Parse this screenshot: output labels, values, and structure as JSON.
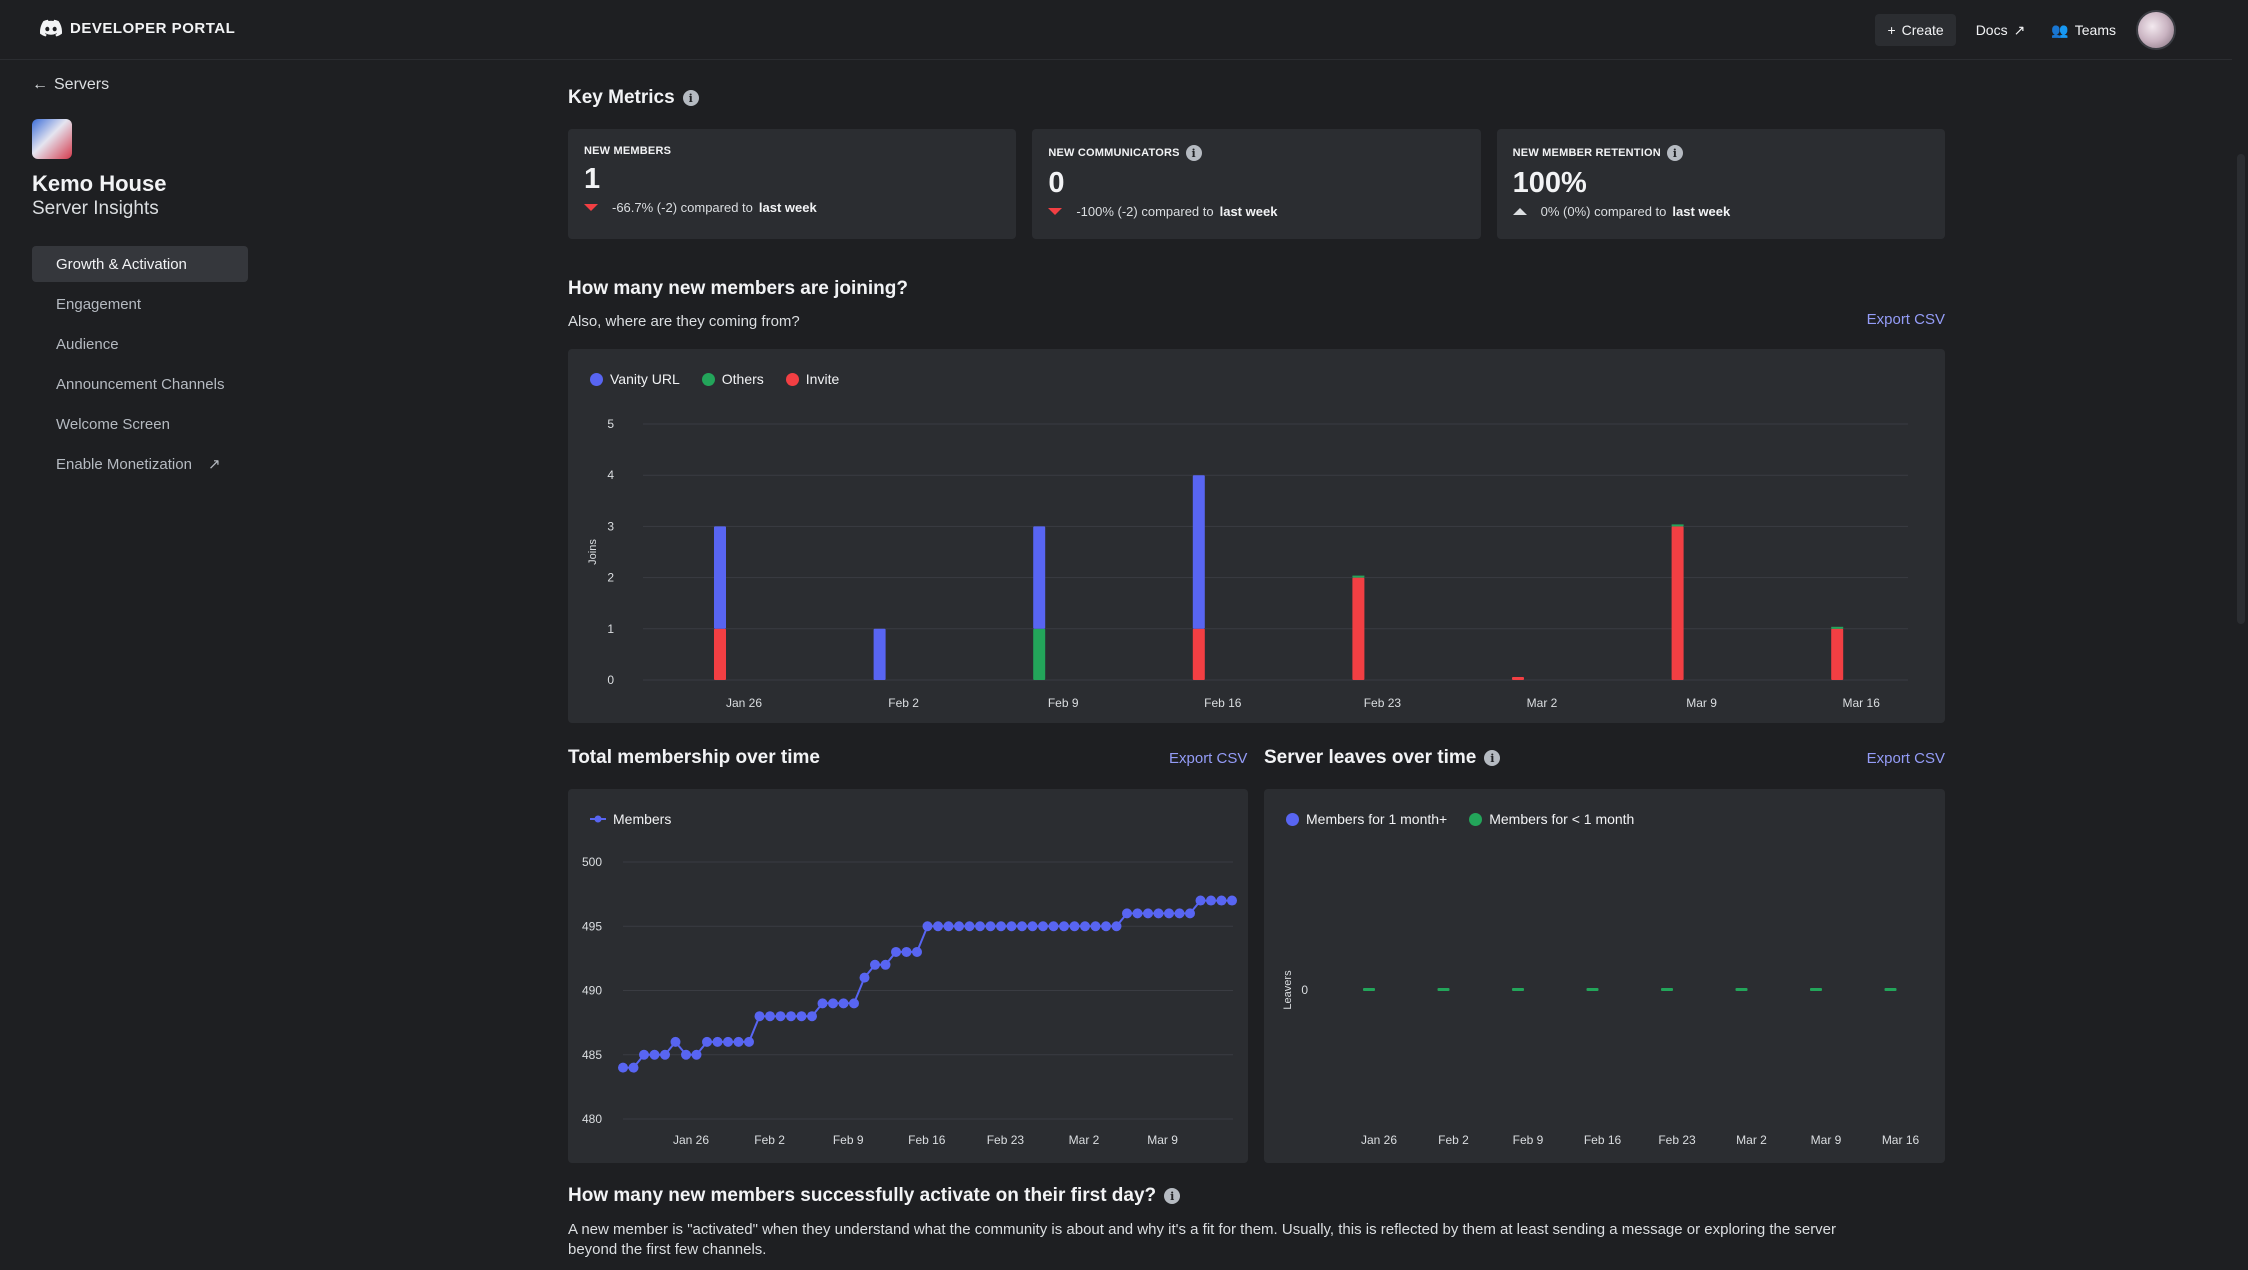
{
  "topbar": {
    "brand": "DEVELOPER PORTAL",
    "create": "Create",
    "docs": "Docs",
    "teams": "Teams"
  },
  "sidebar": {
    "back": "Servers",
    "server_name": "Kemo House",
    "server_sub": "Server Insights",
    "items": [
      {
        "label": "Growth & Activation"
      },
      {
        "label": "Engagement"
      },
      {
        "label": "Audience"
      },
      {
        "label": "Announcement Channels"
      },
      {
        "label": "Welcome Screen"
      },
      {
        "label": "Enable Monetization"
      }
    ]
  },
  "key_metrics": {
    "title": "Key Metrics",
    "cards": [
      {
        "label": "NEW MEMBERS",
        "value": "1",
        "delta": "-66.7% (-2) compared to",
        "period": "last week",
        "direction": "down"
      },
      {
        "label": "NEW COMMUNICATORS",
        "value": "0",
        "delta": "-100% (-2) compared to",
        "period": "last week",
        "direction": "down"
      },
      {
        "label": "NEW MEMBER RETENTION",
        "value": "100%",
        "delta": "0% (0%) compared to",
        "period": "last week",
        "direction": "up"
      }
    ]
  },
  "joining": {
    "title": "How many new members are joining?",
    "subtitle": "Also, where are they coming from?",
    "export": "Export CSV"
  },
  "membership": {
    "title": "Total membership over time",
    "export": "Export CSV"
  },
  "leaves": {
    "title": "Server leaves over time",
    "export": "Export CSV"
  },
  "activation": {
    "title": "How many new members successfully activate on their first day?",
    "description": "A new member is \"activated\" when they understand what the community is about and why it's a fit for them. Usually, this is reflected by them at least sending a message or exploring the server beyond the first few channels."
  },
  "colors": {
    "vanity": "#5865f2",
    "others": "#23a55a",
    "invite": "#f23f43",
    "accent": "#949cf7",
    "line": "#5865f2"
  },
  "chart_data": [
    {
      "type": "bar",
      "stacked": true,
      "ylabel": "Joins",
      "ylim": [
        0,
        5
      ],
      "yticks": [
        0,
        1,
        2,
        3,
        4,
        5
      ],
      "xticks": [
        "Jan 26",
        "Feb 2",
        "Feb 9",
        "Feb 16",
        "Feb 23",
        "Mar 2",
        "Mar 9",
        "Mar 16"
      ],
      "legend_position": "top-left",
      "series_names": [
        "Vanity URL",
        "Others",
        "Invite"
      ],
      "points": [
        {
          "date": "Jan 26",
          "vanity": 2,
          "others": 0,
          "invite": 1
        },
        {
          "date": "Feb 2",
          "vanity": 1,
          "others": 0,
          "invite": 0
        },
        {
          "date": "Feb 9",
          "vanity": 2,
          "others": 1,
          "invite": 0
        },
        {
          "date": "Feb 16",
          "vanity": 3,
          "others": 0,
          "invite": 1
        },
        {
          "date": "Feb 23",
          "vanity": 0,
          "others": 0,
          "invite": 2
        },
        {
          "date": "Mar 2",
          "vanity": 0,
          "others": 0,
          "invite": 0
        },
        {
          "date": "Mar 9",
          "vanity": 0,
          "others": 0,
          "invite": 3
        },
        {
          "date": "Mar 16",
          "vanity": 0,
          "others": 0,
          "invite": 1
        }
      ]
    },
    {
      "type": "line",
      "series_name": "Members",
      "ylim": [
        480,
        500
      ],
      "yticks": [
        480,
        485,
        490,
        495,
        500
      ],
      "xticks": [
        "Jan 26",
        "Feb 2",
        "Feb 9",
        "Feb 16",
        "Feb 23",
        "Mar 2",
        "Mar 9"
      ],
      "values": [
        484,
        484,
        485,
        485,
        485,
        486,
        485,
        485,
        486,
        486,
        486,
        486,
        486,
        488,
        488,
        488,
        488,
        488,
        488,
        489,
        489,
        489,
        489,
        491,
        492,
        492,
        493,
        493,
        493,
        495,
        495,
        495,
        495,
        495,
        495,
        495,
        495,
        495,
        495,
        495,
        495,
        495,
        495,
        495,
        495,
        495,
        495,
        495,
        496,
        496,
        496,
        496,
        496,
        496,
        496,
        497,
        497,
        497,
        497
      ]
    },
    {
      "type": "scatter",
      "ylabel": "Leavers",
      "yticks": [
        0
      ],
      "series_names": [
        "Members for 1 month+",
        "Members for < 1 month"
      ],
      "xticks": [
        "Jan 26",
        "Feb 2",
        "Feb 9",
        "Feb 16",
        "Feb 23",
        "Mar 2",
        "Mar 9",
        "Mar 16"
      ],
      "values_1m_plus": [
        0,
        0,
        0,
        0,
        0,
        0,
        0,
        0
      ],
      "values_lt_1m": [
        0,
        0,
        0,
        0,
        0,
        0,
        0,
        0
      ]
    }
  ]
}
